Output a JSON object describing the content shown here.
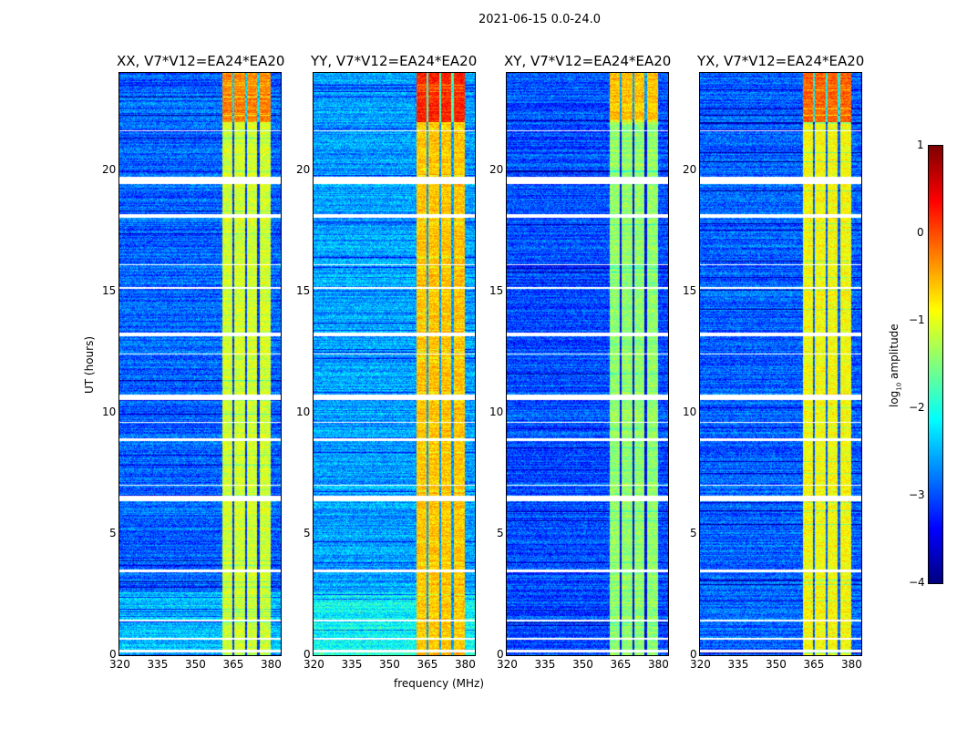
{
  "chart_data": {
    "type": "heatmap",
    "title": "2021-06-15 0.0-24.0",
    "xlabel": "frequency (MHz)",
    "ylabel": "UT (hours)",
    "xlim": [
      320,
      384
    ],
    "ylim": [
      0,
      24
    ],
    "xticks": [
      "320",
      "335",
      "350",
      "365",
      "380"
    ],
    "yticks": [
      "0",
      "5",
      "10",
      "15",
      "20"
    ],
    "colorbar": {
      "label": "log10 amplitude",
      "label_main": "log",
      "label_sub": "10",
      "label_tail": " amplitude",
      "range": [
        -4,
        1
      ],
      "ticks": [
        "1",
        "0",
        "−1",
        "−2",
        "−3",
        "−4"
      ],
      "colormap": "jet"
    },
    "band_MHz": [
      360.5,
      380
    ],
    "band_dividers_MHz": [
      365,
      370,
      375
    ],
    "flagged_hours": [
      [
        0.15,
        0.25
      ],
      [
        0.65,
        0.75
      ],
      [
        1.4,
        1.5
      ],
      [
        3.45,
        3.55
      ],
      [
        6.35,
        6.6
      ],
      [
        7.0,
        7.05
      ],
      [
        8.85,
        8.95
      ],
      [
        9.6,
        9.65
      ],
      [
        10.55,
        10.75
      ],
      [
        12.4,
        12.45
      ],
      [
        13.15,
        13.3
      ],
      [
        15.1,
        15.2
      ],
      [
        16.1,
        16.15
      ],
      [
        18.05,
        18.2
      ],
      [
        19.45,
        19.75
      ],
      [
        21.6,
        21.65
      ]
    ],
    "panels": [
      {
        "title": "XX, V7*V12=EA24*EA20",
        "background_log_amp": -2.9,
        "band_log_amp": -1.1
      },
      {
        "title": "YY, V7*V12=EA24*EA20",
        "background_log_amp": -2.6,
        "band_log_amp": -0.6
      },
      {
        "title": "XY, V7*V12=EA24*EA20",
        "background_log_amp": -3.0,
        "band_log_amp": -1.4
      },
      {
        "title": "YX, V7*V12=EA24*EA20",
        "background_log_amp": -2.9,
        "band_log_amp": -0.9
      }
    ]
  }
}
